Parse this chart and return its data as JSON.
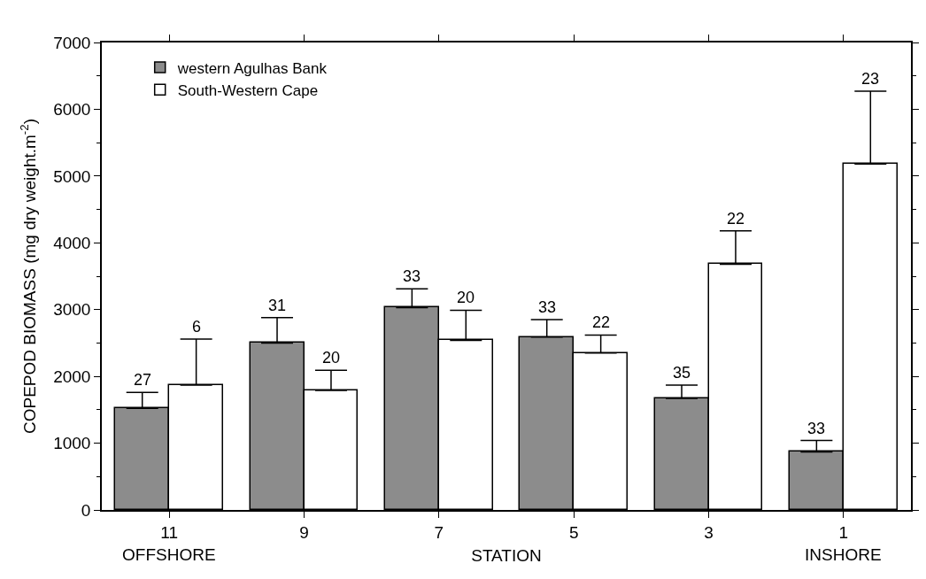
{
  "chart_data": {
    "type": "bar",
    "categories": [
      "11",
      "9",
      "7",
      "5",
      "3",
      "1"
    ],
    "xlabel": "STATION",
    "ylabel": "COPEPOD BIOMASS (mg dry weight.m$^{-2}$)",
    "annotations": [
      "OFFSHORE",
      "INSHORE",
      "27",
      "31",
      "33",
      "33",
      "35",
      "33",
      "6",
      "20",
      "20",
      "22",
      "22",
      "23"
    ],
    "series": [
      {
        "name": "western Agulhas Bank",
        "color": "#8c8c8c",
        "values": [
          1520,
          2500,
          3030,
          2590,
          1670,
          870
        ],
        "errors": [
          [
            1520,
            1760
          ],
          [
            2500,
            2880
          ],
          [
            3030,
            3310
          ],
          [
            2590,
            2850
          ],
          [
            1670,
            1870
          ],
          [
            870,
            1040
          ]
        ]
      },
      {
        "name": "South-Western Cape",
        "color": "#ffffff",
        "values": [
          1870,
          1790,
          2540,
          2350,
          3680,
          5180
        ],
        "errors": [
          [
            1870,
            2560
          ],
          [
            1790,
            2090
          ],
          [
            2540,
            2990
          ],
          [
            2350,
            2620
          ],
          [
            3680,
            4180
          ],
          [
            5180,
            6270
          ]
        ]
      }
    ],
    "ylim": [
      0,
      7000
    ],
    "yticks": [
      0,
      1000,
      2000,
      3000,
      4000,
      5000,
      6000,
      7000
    ],
    "legend": "top left"
  }
}
